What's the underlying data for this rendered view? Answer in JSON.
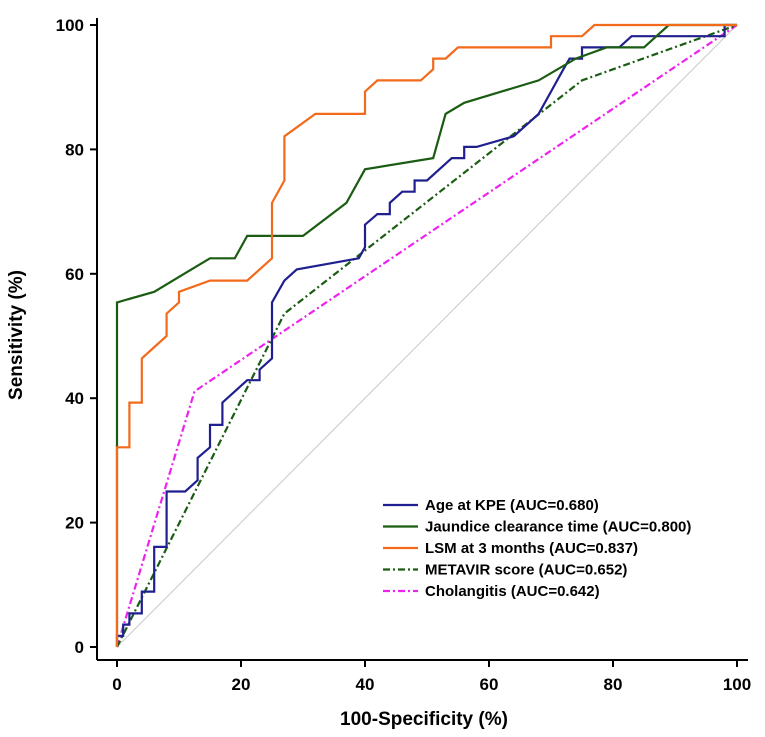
{
  "chart_data": {
    "type": "line",
    "title": "",
    "xlabel": "100-Specificity (%)",
    "ylabel": "Sensitivity (%)",
    "xlim": [
      0,
      100
    ],
    "ylim": [
      0,
      100
    ],
    "xticks": [
      "0",
      "20",
      "40",
      "60",
      "80",
      "100"
    ],
    "yticks": [
      "0",
      "20",
      "40",
      "60",
      "80",
      "100"
    ],
    "grid": false,
    "legend_position": "bottom-right",
    "reference_line": {
      "color": "#c8c8c8",
      "points": [
        [
          0,
          0
        ],
        [
          100,
          100
        ]
      ]
    },
    "series": [
      {
        "name": "Age at KPE (AUC=0.680)",
        "color": "#1f1f8f",
        "style": "solid",
        "points": [
          [
            0,
            0
          ],
          [
            0,
            1.8
          ],
          [
            1,
            1.8
          ],
          [
            1,
            3.6
          ],
          [
            2,
            3.6
          ],
          [
            2,
            5.4
          ],
          [
            4,
            5.4
          ],
          [
            4,
            8.9
          ],
          [
            6,
            8.9
          ],
          [
            6,
            16.1
          ],
          [
            8,
            16.1
          ],
          [
            8,
            25
          ],
          [
            11,
            25
          ],
          [
            13,
            26.8
          ],
          [
            13,
            30.4
          ],
          [
            15,
            32.1
          ],
          [
            15,
            35.7
          ],
          [
            17,
            35.7
          ],
          [
            17,
            39.3
          ],
          [
            19,
            41.1
          ],
          [
            21,
            42.9
          ],
          [
            23,
            42.9
          ],
          [
            23,
            44.6
          ],
          [
            25,
            46.4
          ],
          [
            25,
            55.4
          ],
          [
            27,
            58.9
          ],
          [
            29,
            60.7
          ],
          [
            39,
            62.5
          ],
          [
            40,
            64.3
          ],
          [
            40,
            67.9
          ],
          [
            42,
            69.6
          ],
          [
            44,
            69.6
          ],
          [
            44,
            71.4
          ],
          [
            46,
            73.2
          ],
          [
            48,
            73.2
          ],
          [
            48,
            75
          ],
          [
            50,
            75
          ],
          [
            54,
            78.6
          ],
          [
            56,
            78.6
          ],
          [
            56,
            80.4
          ],
          [
            58,
            80.4
          ],
          [
            64,
            82.1
          ],
          [
            68,
            85.7
          ],
          [
            70,
            89.3
          ],
          [
            72,
            92.9
          ],
          [
            73,
            94.6
          ],
          [
            75,
            94.6
          ],
          [
            75,
            96.4
          ],
          [
            81,
            96.4
          ],
          [
            83,
            98.2
          ],
          [
            98,
            98.2
          ],
          [
            98,
            100
          ],
          [
            100,
            100
          ]
        ]
      },
      {
        "name": "Jaundice clearance time (AUC=0.800)",
        "color": "#1a5c12",
        "style": "solid",
        "points": [
          [
            0,
            0
          ],
          [
            0,
            55.4
          ],
          [
            6,
            57.1
          ],
          [
            12,
            60.7
          ],
          [
            15,
            62.5
          ],
          [
            19,
            62.5
          ],
          [
            21,
            66.1
          ],
          [
            30,
            66.1
          ],
          [
            37,
            71.4
          ],
          [
            40,
            76.8
          ],
          [
            51,
            78.6
          ],
          [
            53,
            85.7
          ],
          [
            56,
            87.5
          ],
          [
            62,
            89.3
          ],
          [
            68,
            91.1
          ],
          [
            74,
            94.6
          ],
          [
            79,
            96.4
          ],
          [
            85,
            96.4
          ],
          [
            89,
            100
          ],
          [
            100,
            100
          ]
        ]
      },
      {
        "name": "LSM at 3 months (AUC=0.837)",
        "color": "#f26a1b",
        "style": "solid",
        "points": [
          [
            0,
            0
          ],
          [
            0,
            32.1
          ],
          [
            2,
            32.1
          ],
          [
            2,
            39.3
          ],
          [
            4,
            39.3
          ],
          [
            4,
            46.4
          ],
          [
            8,
            50
          ],
          [
            8,
            53.6
          ],
          [
            10,
            55.4
          ],
          [
            10,
            57.1
          ],
          [
            15,
            58.9
          ],
          [
            21,
            58.9
          ],
          [
            25,
            62.5
          ],
          [
            25,
            71.4
          ],
          [
            27,
            75
          ],
          [
            27,
            82.1
          ],
          [
            32,
            85.7
          ],
          [
            40,
            85.7
          ],
          [
            40,
            89.3
          ],
          [
            42,
            91.1
          ],
          [
            49,
            91.1
          ],
          [
            51,
            92.9
          ],
          [
            51,
            94.6
          ],
          [
            53,
            94.6
          ],
          [
            55,
            96.4
          ],
          [
            70,
            96.4
          ],
          [
            70,
            98.2
          ],
          [
            75,
            98.2
          ],
          [
            77,
            100
          ],
          [
            100,
            100
          ]
        ]
      },
      {
        "name": "METAVIR score (AUC=0.652)",
        "color": "#1a5c12",
        "style": "dashdot",
        "points": [
          [
            0,
            0
          ],
          [
            27,
            53.6
          ],
          [
            75,
            91.1
          ],
          [
            100,
            100
          ]
        ]
      },
      {
        "name": "Cholangitis (AUC=0.642)",
        "color": "#ee22ee",
        "style": "dashdot",
        "points": [
          [
            0,
            0
          ],
          [
            12.5,
            41.1
          ],
          [
            100,
            100
          ]
        ]
      }
    ]
  }
}
